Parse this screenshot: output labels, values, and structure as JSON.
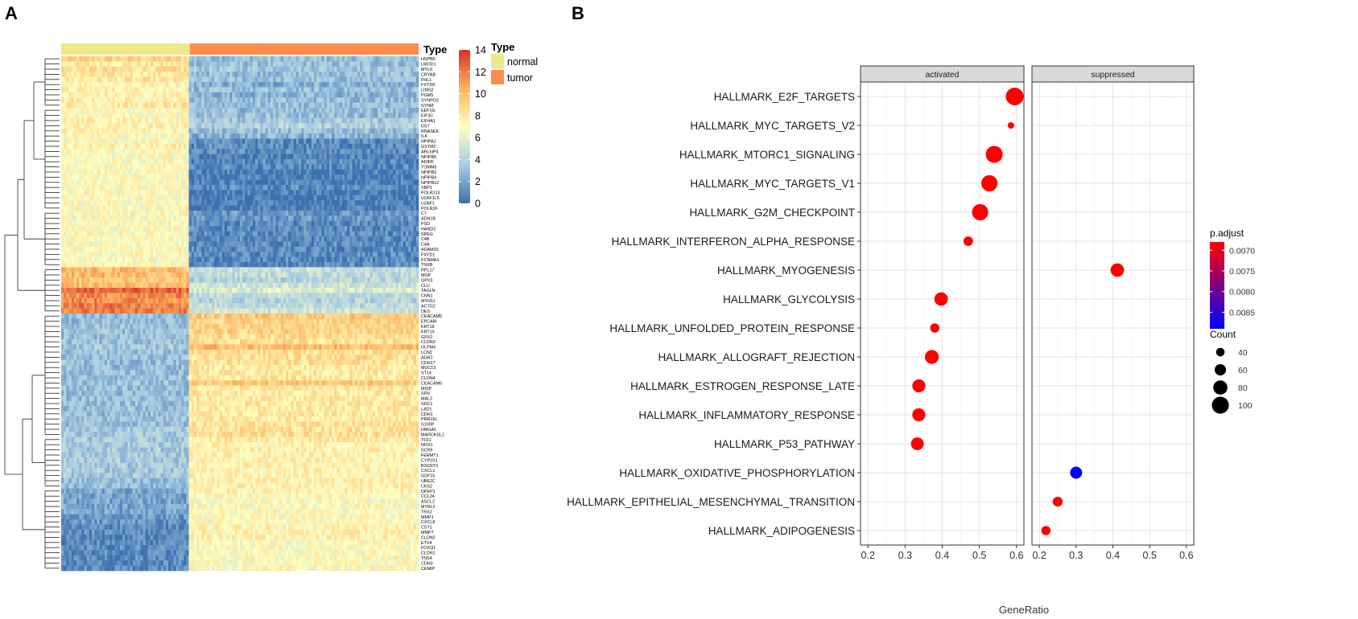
{
  "chart_data": [
    {
      "type": "heatmap",
      "panel_label": "A",
      "annotation_title": "Type",
      "legend_title": "Type",
      "groups": [
        {
          "name": "normal",
          "color": "#F0E68C",
          "fraction": 0.36
        },
        {
          "name": "tumor",
          "color": "#FF8C4A",
          "fraction": 0.64
        }
      ],
      "scale": {
        "min": 0,
        "max": 14,
        "ticks": [
          0,
          2,
          4,
          6,
          8,
          10,
          12,
          14
        ],
        "colors": [
          "#3C6FB0",
          "#A9CDE3",
          "#FFFFBF",
          "#FDB460",
          "#D73027"
        ]
      },
      "rows": [
        {
          "gene": "HSPB6",
          "normal": 9,
          "tumor": 3
        },
        {
          "gene": "LMOD1",
          "normal": 8,
          "tumor": 3
        },
        {
          "gene": "MYLK",
          "normal": 8.5,
          "tumor": 3.5
        },
        {
          "gene": "CRYAB",
          "normal": 8,
          "tumor": 3
        },
        {
          "gene": "FHL1",
          "normal": 8,
          "tumor": 3
        },
        {
          "gene": "FXYD6",
          "normal": 7.5,
          "tumor": 2.5
        },
        {
          "gene": "LIMS2",
          "normal": 7.5,
          "tumor": 3
        },
        {
          "gene": "PGM5",
          "normal": 7.5,
          "tumor": 2.5
        },
        {
          "gene": "SYNPO2",
          "normal": 7.5,
          "tumor": 3
        },
        {
          "gene": "SYNM",
          "normal": 8,
          "tumor": 3
        },
        {
          "gene": "EEF1G",
          "normal": 7,
          "tumor": 3
        },
        {
          "gene": "EIF3C",
          "normal": 7,
          "tumor": 3
        },
        {
          "gene": "EIF4A1",
          "normal": 7.5,
          "tumor": 3.5
        },
        {
          "gene": "DST",
          "normal": 7.5,
          "tumor": 4
        },
        {
          "gene": "RNASEK",
          "normal": 7.5,
          "tumor": 3
        },
        {
          "gene": "ILK",
          "normal": 7,
          "tumor": 2.5
        },
        {
          "gene": "NPIPA1",
          "normal": 7,
          "tumor": 1
        },
        {
          "gene": "GSTM2",
          "normal": 7.5,
          "tumor": 1
        },
        {
          "gene": "ARL6IP4",
          "normal": 7,
          "tumor": 1
        },
        {
          "gene": "NPIPB5",
          "normal": 7,
          "tumor": 0.5
        },
        {
          "gene": "ADIRF",
          "normal": 7,
          "tumor": 1
        },
        {
          "gene": "TOMM6",
          "normal": 7,
          "tumor": 1
        },
        {
          "gene": "NPIPB3",
          "normal": 7,
          "tumor": 0.5
        },
        {
          "gene": "NPIPB4",
          "normal": 7,
          "tumor": 0.5
        },
        {
          "gene": "NPIPB12",
          "normal": 7,
          "tumor": 0.5
        },
        {
          "gene": "XBP1",
          "normal": 7,
          "tumor": 1
        },
        {
          "gene": "POLR2J3",
          "normal": 7,
          "tumor": 0.5
        },
        {
          "gene": "U2AF1L5",
          "normal": 7,
          "tumor": 0.5
        },
        {
          "gene": "U2AF1",
          "normal": 7,
          "tumor": 0.5
        },
        {
          "gene": "POLR2F",
          "normal": 7,
          "tumor": 0.5
        },
        {
          "gene": "C7",
          "normal": 7,
          "tumor": 1.5
        },
        {
          "gene": "ADH1B",
          "normal": 7,
          "tumor": 1.5
        },
        {
          "gene": "PSD",
          "normal": 7,
          "tumor": 1
        },
        {
          "gene": "HAND2",
          "normal": 7,
          "tumor": 1
        },
        {
          "gene": "SPEG",
          "normal": 7,
          "tumor": 1
        },
        {
          "gene": "C4B",
          "normal": 7,
          "tumor": 1
        },
        {
          "gene": "C4A",
          "normal": 7,
          "tumor": 1
        },
        {
          "gene": "ADAM33",
          "normal": 7,
          "tumor": 1
        },
        {
          "gene": "FXYD1",
          "normal": 7,
          "tumor": 1
        },
        {
          "gene": "KCNMA1",
          "normal": 7,
          "tumor": 1
        },
        {
          "gene": "TNXB",
          "normal": 7,
          "tumor": 1
        },
        {
          "gene": "RPL17",
          "normal": 10,
          "tumor": 4.5
        },
        {
          "gene": "MGP",
          "normal": 10,
          "tumor": 4.5
        },
        {
          "gene": "GPX3",
          "normal": 9.5,
          "tumor": 4
        },
        {
          "gene": "CLU",
          "normal": 10,
          "tumor": 5
        },
        {
          "gene": "TAGLN",
          "normal": 12.5,
          "tumor": 5.5
        },
        {
          "gene": "CNN1",
          "normal": 11.5,
          "tumor": 4.5
        },
        {
          "gene": "MYH11",
          "normal": 11.5,
          "tumor": 4
        },
        {
          "gene": "ACTG2",
          "normal": 12,
          "tumor": 4.5
        },
        {
          "gene": "DES",
          "normal": 12,
          "tumor": 5
        },
        {
          "gene": "CEACAM5",
          "normal": 3,
          "tumor": 9.5
        },
        {
          "gene": "EPCAM",
          "normal": 3,
          "tumor": 9
        },
        {
          "gene": "KRT18",
          "normal": 3,
          "tumor": 9
        },
        {
          "gene": "KRT19",
          "normal": 3,
          "tumor": 9
        },
        {
          "gene": "GPX2",
          "normal": 3,
          "tumor": 8.5
        },
        {
          "gene": "CLDN3",
          "normal": 3,
          "tumor": 8.5
        },
        {
          "gene": "OLFM4",
          "normal": 3.5,
          "tumor": 10
        },
        {
          "gene": "LCN2",
          "normal": 3,
          "tumor": 8.5
        },
        {
          "gene": "AGR2",
          "normal": 3,
          "tumor": 8.5
        },
        {
          "gene": "CDH17",
          "normal": 3,
          "tumor": 8.5
        },
        {
          "gene": "MUC13",
          "normal": 3,
          "tumor": 8
        },
        {
          "gene": "ST14",
          "normal": 3,
          "tumor": 8
        },
        {
          "gene": "CLDN4",
          "normal": 3,
          "tumor": 8
        },
        {
          "gene": "CEACAM6",
          "normal": 3,
          "tumor": 9.5
        },
        {
          "gene": "MISP",
          "normal": 3,
          "tumor": 8
        },
        {
          "gene": "SFN",
          "normal": 3,
          "tumor": 8
        },
        {
          "gene": "MAL2",
          "normal": 3,
          "tumor": 8
        },
        {
          "gene": "SDC1",
          "normal": 3,
          "tumor": 8
        },
        {
          "gene": "LAD1",
          "normal": 3,
          "tumor": 8
        },
        {
          "gene": "CDH1",
          "normal": 3,
          "tumor": 8
        },
        {
          "gene": "PRR15L",
          "normal": 3,
          "tumor": 8
        },
        {
          "gene": "S100P",
          "normal": 3,
          "tumor": 8.5
        },
        {
          "gene": "HMGA1",
          "normal": 3.5,
          "tumor": 8.5
        },
        {
          "gene": "MARCKSL1",
          "normal": 3.5,
          "tumor": 8.5
        },
        {
          "gene": "TFF1",
          "normal": 3.5,
          "tumor": 8
        },
        {
          "gene": "NOX1",
          "normal": 3.5,
          "tumor": 7.5
        },
        {
          "gene": "SOX9",
          "normal": 3.5,
          "tumor": 7.5
        },
        {
          "gene": "FERMT1",
          "normal": 3.5,
          "tumor": 7.5
        },
        {
          "gene": "CYP2S1",
          "normal": 3.5,
          "tumor": 7.5
        },
        {
          "gene": "B3GNT3",
          "normal": 3.5,
          "tumor": 7.5
        },
        {
          "gene": "CXCL1",
          "normal": 3.5,
          "tumor": 7.5
        },
        {
          "gene": "GDF15",
          "normal": 3.5,
          "tumor": 7.5
        },
        {
          "gene": "UBE2C",
          "normal": 3,
          "tumor": 7.5
        },
        {
          "gene": "CKS2",
          "normal": 3,
          "tumor": 7.5
        },
        {
          "gene": "DPEP1",
          "normal": 2,
          "tumor": 7.5
        },
        {
          "gene": "CCL24",
          "normal": 2,
          "tumor": 7
        },
        {
          "gene": "ASCL2",
          "normal": 2,
          "tumor": 7
        },
        {
          "gene": "MYBL2",
          "normal": 2,
          "tumor": 7
        },
        {
          "gene": "TRX2",
          "normal": 2,
          "tumor": 7
        },
        {
          "gene": "MMP1",
          "normal": 1.5,
          "tumor": 7
        },
        {
          "gene": "CXCL8",
          "normal": 1.5,
          "tumor": 7
        },
        {
          "gene": "CST1",
          "normal": 1,
          "tumor": 7.5
        },
        {
          "gene": "MMP7",
          "normal": 1,
          "tumor": 7.5
        },
        {
          "gene": "CLDN2",
          "normal": 1,
          "tumor": 7.5
        },
        {
          "gene": "ETV4",
          "normal": 1,
          "tumor": 7
        },
        {
          "gene": "FOXQ1",
          "normal": 1,
          "tumor": 7
        },
        {
          "gene": "CLDN1",
          "normal": 1,
          "tumor": 7
        },
        {
          "gene": "TNS4",
          "normal": 1,
          "tumor": 7
        },
        {
          "gene": "CDH3",
          "normal": 1,
          "tumor": 7
        },
        {
          "gene": "CEMIP",
          "normal": 1,
          "tumor": 7
        }
      ]
    },
    {
      "type": "scatter",
      "panel_label": "B",
      "xlabel": "GeneRatio",
      "facets": [
        "activated",
        "suppressed"
      ],
      "xlim": [
        0.18,
        0.62
      ],
      "xticks": [
        "0.2",
        "0.3",
        "0.4",
        "0.5",
        "0.6"
      ],
      "categories": [
        "HALLMARK_E2F_TARGETS",
        "HALLMARK_MYC_TARGETS_V2",
        "HALLMARK_MTORC1_SIGNALING",
        "HALLMARK_MYC_TARGETS_V1",
        "HALLMARK_G2M_CHECKPOINT",
        "HALLMARK_INTERFERON_ALPHA_RESPONSE",
        "HALLMARK_MYOGENESIS",
        "HALLMARK_GLYCOLYSIS",
        "HALLMARK_UNFOLDED_PROTEIN_RESPONSE",
        "HALLMARK_ALLOGRAFT_REJECTION",
        "HALLMARK_ESTROGEN_RESPONSE_LATE",
        "HALLMARK_INFLAMMATORY_RESPONSE",
        "HALLMARK_P53_PATHWAY",
        "HALLMARK_OXIDATIVE_PHOSPHORYLATION",
        "HALLMARK_EPITHELIAL_MESENCHYMAL_TRANSITION",
        "HALLMARK_ADIPOGENESIS"
      ],
      "points": [
        {
          "term": "HALLMARK_E2F_TARGETS",
          "facet": "activated",
          "gene_ratio": 0.595,
          "count": 105,
          "p_adjust": 0.0068
        },
        {
          "term": "HALLMARK_MYC_TARGETS_V2",
          "facet": "activated",
          "gene_ratio": 0.585,
          "count": 25,
          "p_adjust": 0.0068
        },
        {
          "term": "HALLMARK_MTORC1_SIGNALING",
          "facet": "activated",
          "gene_ratio": 0.54,
          "count": 100,
          "p_adjust": 0.0068
        },
        {
          "term": "HALLMARK_MYC_TARGETS_V1",
          "facet": "activated",
          "gene_ratio": 0.527,
          "count": 95,
          "p_adjust": 0.0068
        },
        {
          "term": "HALLMARK_G2M_CHECKPOINT",
          "facet": "activated",
          "gene_ratio": 0.502,
          "count": 95,
          "p_adjust": 0.0068
        },
        {
          "term": "HALLMARK_INTERFERON_ALPHA_RESPONSE",
          "facet": "activated",
          "gene_ratio": 0.47,
          "count": 47,
          "p_adjust": 0.0068
        },
        {
          "term": "HALLMARK_MYOGENESIS",
          "facet": "suppressed",
          "gene_ratio": 0.412,
          "count": 75,
          "p_adjust": 0.0068
        },
        {
          "term": "HALLMARK_GLYCOLYSIS",
          "facet": "activated",
          "gene_ratio": 0.397,
          "count": 75,
          "p_adjust": 0.0068
        },
        {
          "term": "HALLMARK_UNFOLDED_PROTEIN_RESPONSE",
          "facet": "activated",
          "gene_ratio": 0.38,
          "count": 45,
          "p_adjust": 0.0068
        },
        {
          "term": "HALLMARK_ALLOGRAFT_REJECTION",
          "facet": "activated",
          "gene_ratio": 0.372,
          "count": 78,
          "p_adjust": 0.0068
        },
        {
          "term": "HALLMARK_ESTROGEN_RESPONSE_LATE",
          "facet": "activated",
          "gene_ratio": 0.337,
          "count": 72,
          "p_adjust": 0.0068
        },
        {
          "term": "HALLMARK_INFLAMMATORY_RESPONSE",
          "facet": "activated",
          "gene_ratio": 0.337,
          "count": 72,
          "p_adjust": 0.0068
        },
        {
          "term": "HALLMARK_P53_PATHWAY",
          "facet": "activated",
          "gene_ratio": 0.333,
          "count": 70,
          "p_adjust": 0.0068
        },
        {
          "term": "HALLMARK_OXIDATIVE_PHOSPHORYLATION",
          "facet": "suppressed",
          "gene_ratio": 0.3,
          "count": 65,
          "p_adjust": 0.0089
        },
        {
          "term": "HALLMARK_EPITHELIAL_MESENCHYMAL_TRANSITION",
          "facet": "suppressed",
          "gene_ratio": 0.25,
          "count": 50,
          "p_adjust": 0.0068
        },
        {
          "term": "HALLMARK_ADIPOGENESIS",
          "facet": "suppressed",
          "gene_ratio": 0.218,
          "count": 45,
          "p_adjust": 0.0068
        }
      ],
      "color_legend": {
        "title": "p.adjust",
        "ticks": [
          0.007,
          0.0075,
          0.008,
          0.0085
        ],
        "tick_labels": [
          "0.0070",
          "0.0075",
          "0.0080",
          "0.0085"
        ],
        "low_color": "#FF0000",
        "high_color": "#0000FF"
      },
      "size_legend": {
        "title": "Count",
        "values": [
          40,
          60,
          80,
          100
        ]
      }
    }
  ]
}
